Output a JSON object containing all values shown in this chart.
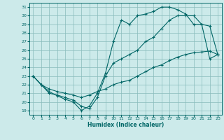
{
  "xlabel": "Humidex (Indice chaleur)",
  "bg_color": "#cceaea",
  "grid_color": "#88bbbb",
  "line_color": "#006666",
  "xlim": [
    -0.5,
    23.5
  ],
  "ylim": [
    18.5,
    31.5
  ],
  "xticks": [
    0,
    1,
    2,
    3,
    4,
    5,
    6,
    7,
    8,
    9,
    10,
    11,
    12,
    13,
    14,
    15,
    16,
    17,
    18,
    19,
    20,
    21,
    22,
    23
  ],
  "yticks": [
    19,
    20,
    21,
    22,
    23,
    24,
    25,
    26,
    27,
    28,
    29,
    30,
    31
  ],
  "line1_x": [
    0,
    1,
    2,
    3,
    4,
    5,
    6,
    7,
    8,
    9,
    10,
    11,
    12,
    13,
    14,
    15,
    16,
    17,
    18,
    19,
    20,
    21,
    22,
    23
  ],
  "line1_y": [
    23.0,
    22.0,
    21.2,
    20.7,
    20.3,
    20.0,
    19.0,
    19.5,
    21.0,
    23.3,
    27.0,
    29.5,
    29.0,
    30.0,
    30.2,
    30.5,
    31.0,
    31.0,
    30.7,
    30.2,
    29.0,
    29.0,
    25.0,
    25.5
  ],
  "line2_x": [
    0,
    1,
    2,
    3,
    4,
    5,
    6,
    7,
    8,
    9,
    10,
    11,
    12,
    13,
    14,
    15,
    16,
    17,
    18,
    19,
    20,
    21,
    22,
    23
  ],
  "line2_y": [
    23.0,
    22.0,
    21.0,
    20.8,
    20.5,
    20.2,
    19.5,
    19.2,
    20.5,
    23.0,
    24.5,
    25.0,
    25.5,
    26.0,
    27.0,
    27.5,
    28.5,
    29.5,
    30.0,
    30.0,
    30.0,
    29.0,
    28.8,
    25.5
  ],
  "line3_x": [
    0,
    1,
    2,
    3,
    4,
    5,
    6,
    7,
    8,
    9,
    10,
    11,
    12,
    13,
    14,
    15,
    16,
    17,
    18,
    19,
    20,
    21,
    22,
    23
  ],
  "line3_y": [
    23.0,
    22.0,
    21.5,
    21.2,
    21.0,
    20.8,
    20.5,
    20.8,
    21.2,
    21.5,
    22.0,
    22.3,
    22.5,
    23.0,
    23.5,
    24.0,
    24.3,
    24.8,
    25.2,
    25.5,
    25.7,
    25.8,
    25.9,
    25.5
  ]
}
